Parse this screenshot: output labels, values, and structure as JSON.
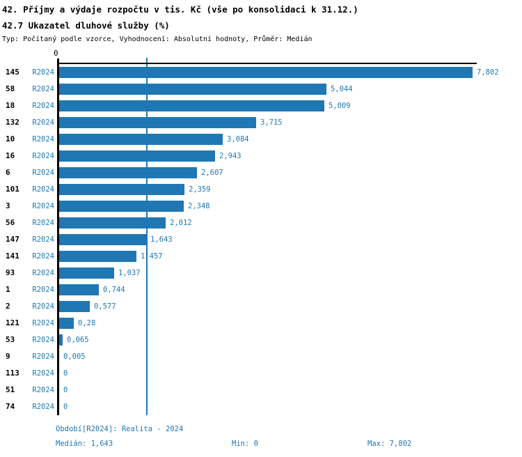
{
  "header": {
    "title1": "42. Příjmy a výdaje rozpočtu v tis. Kč (vše po konsolidaci k 31.12.)",
    "title2": "42.7 Ukazatel dluhové služby (%)",
    "meta": "Typ: Počítaný podle vzorce, Vyhodnocení: Absolutní hodnoty, Průměr: Medián"
  },
  "chart_data": {
    "type": "bar",
    "orientation": "horizontal",
    "title": "42.7 Ukazatel dluhové služby (%)",
    "series_label": "R2024",
    "categories": [
      "145",
      "58",
      "18",
      "132",
      "10",
      "16",
      "6",
      "101",
      "3",
      "56",
      "147",
      "141",
      "93",
      "1",
      "2",
      "121",
      "53",
      "9",
      "113",
      "51",
      "74"
    ],
    "values": [
      7.802,
      5.044,
      5.009,
      3.715,
      3.084,
      2.943,
      2.607,
      2.359,
      2.348,
      2.012,
      1.643,
      1.457,
      1.037,
      0.744,
      0.577,
      0.28,
      0.065,
      0.005,
      0,
      0,
      0
    ],
    "value_labels": [
      "7,802",
      "5,044",
      "5,009",
      "3,715",
      "3,084",
      "2,943",
      "2,607",
      "2,359",
      "2,348",
      "2,012",
      "1,643",
      "1,457",
      "1,037",
      "0,744",
      "0,577",
      "0,28",
      "0,065",
      "0,005",
      "0",
      "0",
      "0"
    ],
    "xlim": [
      0,
      7.802
    ],
    "axis_zero_label": "0",
    "median_value": 1.643,
    "grid": "off",
    "bar_color": "#1f77b4",
    "axis_color": "#000000"
  },
  "footer": {
    "period_line": "Období[R2024]: Realita - 2024",
    "median_label": "Medián: 1,643",
    "min_label": "Min: 0",
    "max_label": "Max: 7,802"
  },
  "colors": {
    "accent": "#1f77b4",
    "background": "#ffffff",
    "text": "#000000"
  }
}
